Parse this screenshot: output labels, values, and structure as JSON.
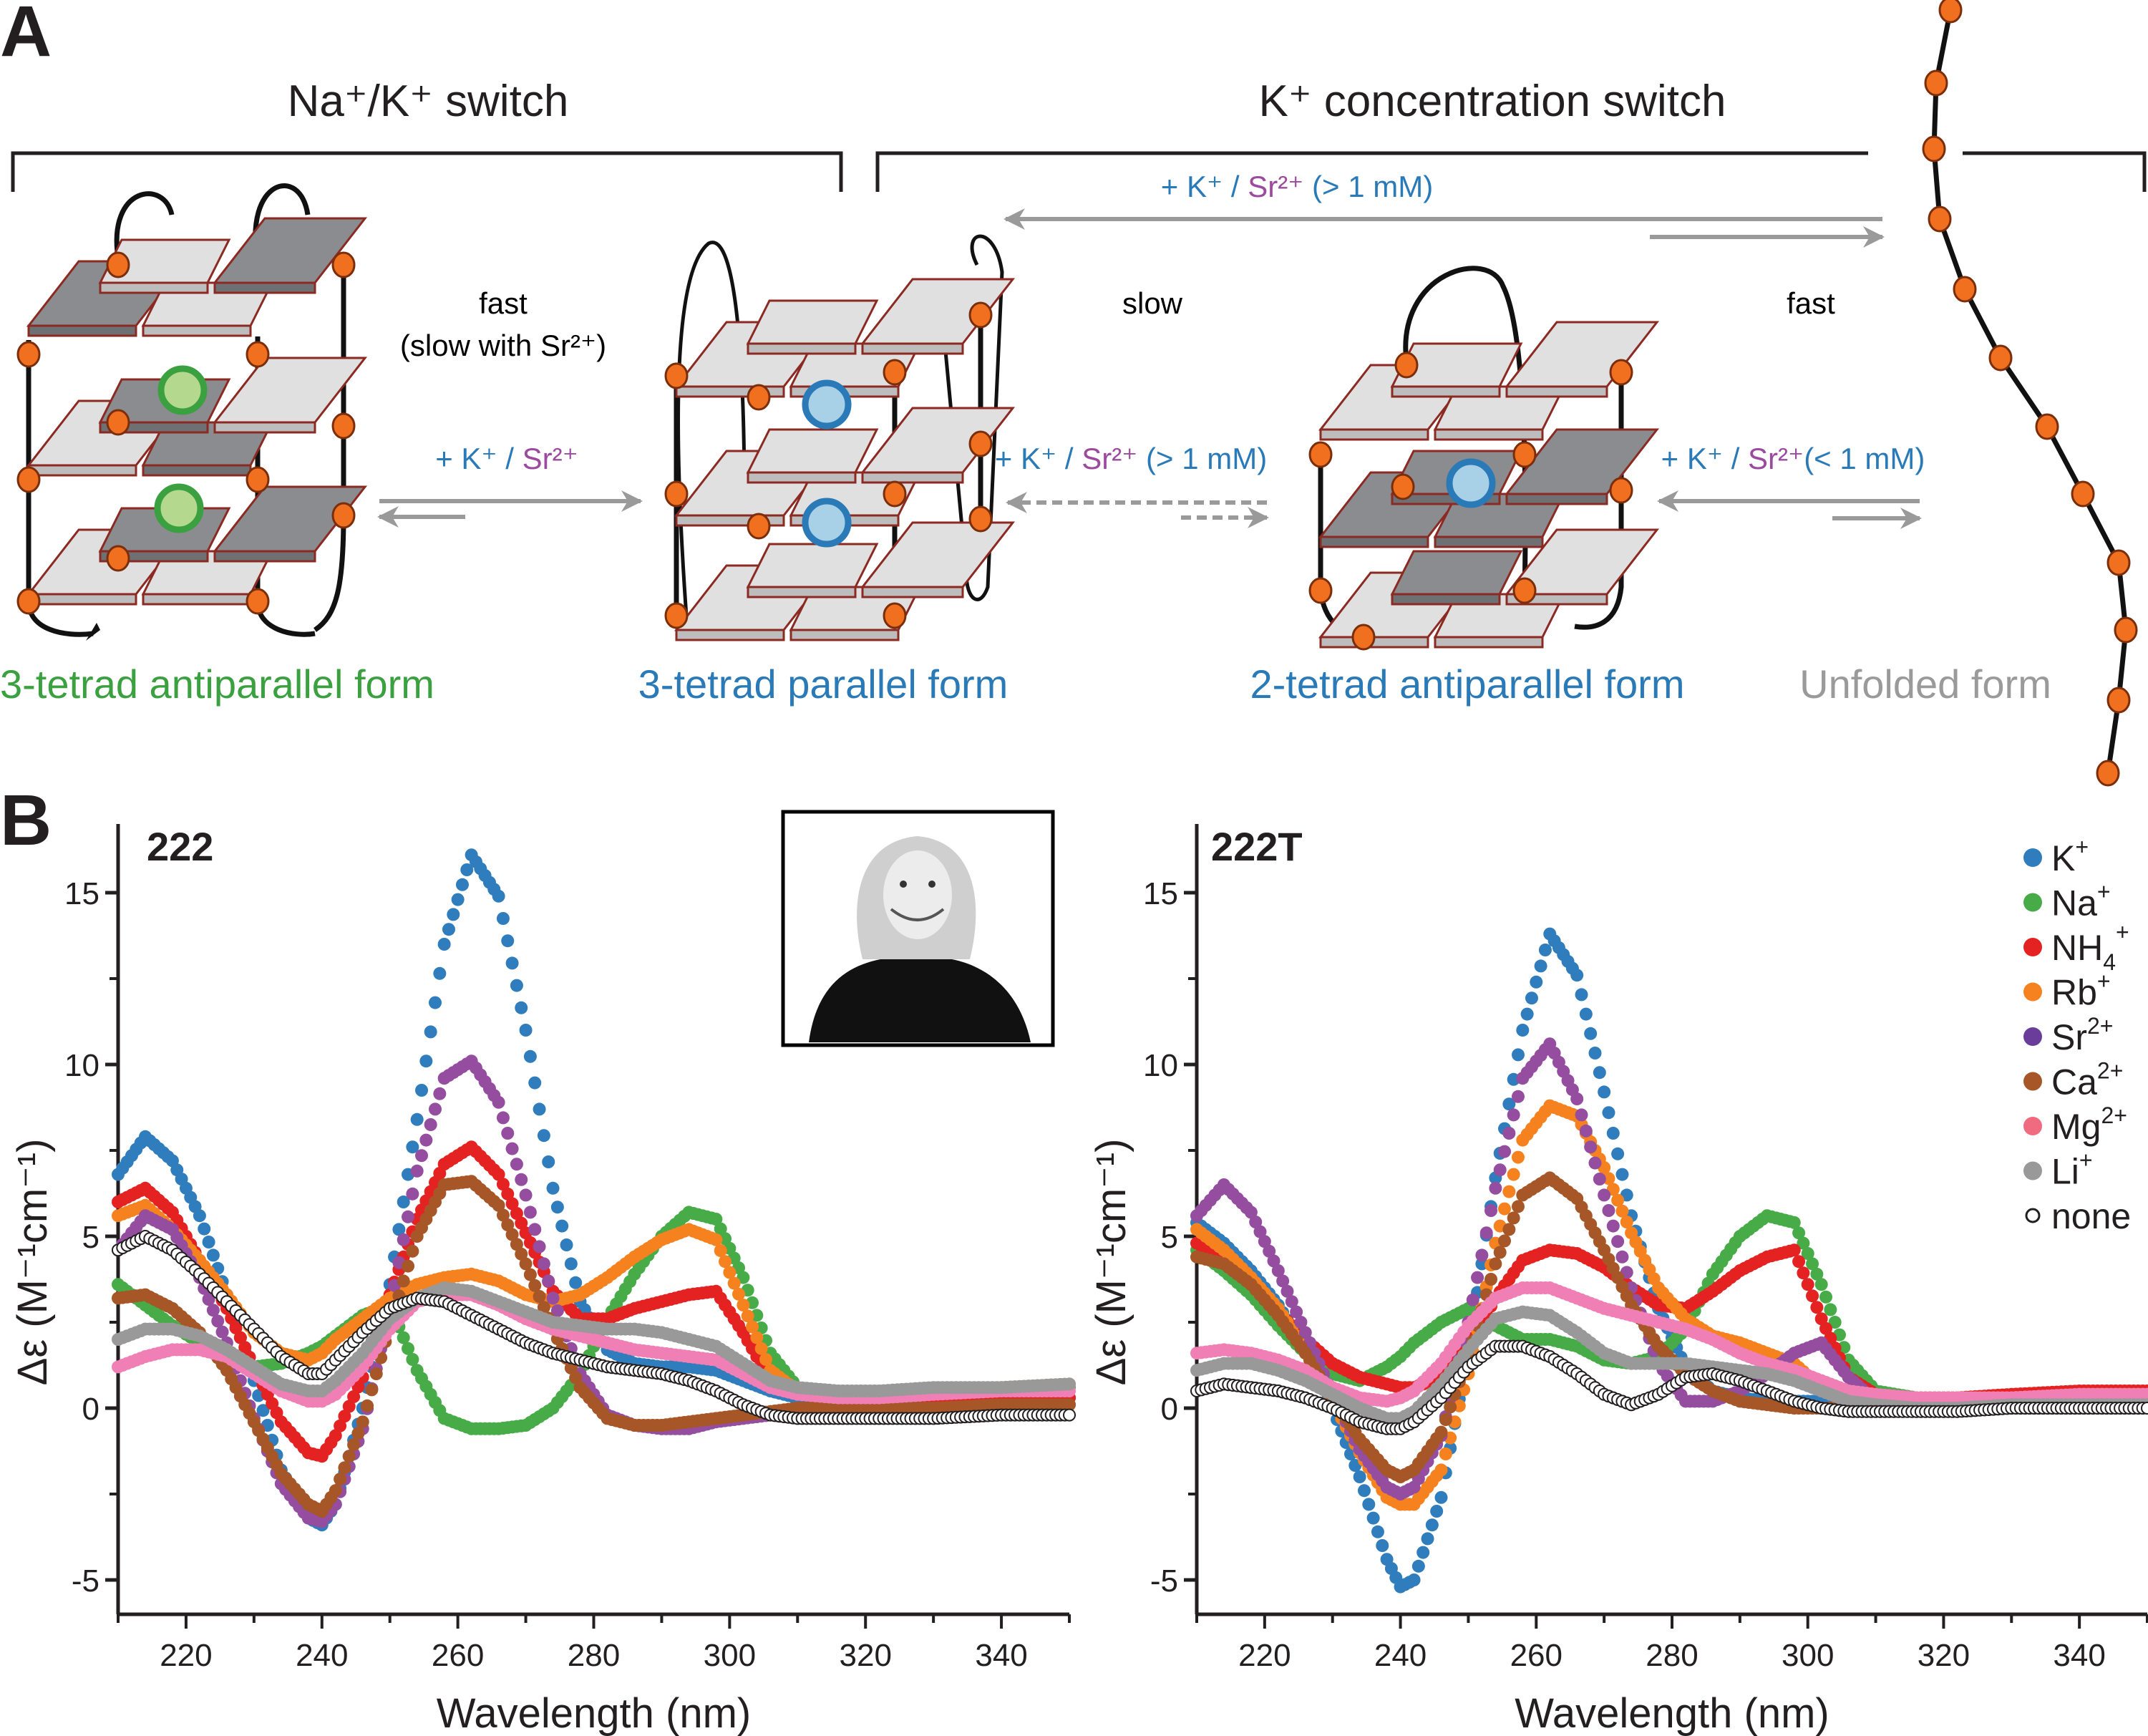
{
  "panel_a": {
    "label": "A",
    "switch_titles": [
      "Na⁺/K⁺ switch",
      "K⁺ concentration  switch"
    ],
    "rate_labels": {
      "nak": "fast",
      "nak_sub": "(slow with Sr²⁺)",
      "slow": "slow",
      "fast": "fast"
    },
    "conditions": {
      "top": {
        "k": "+ K⁺ / ",
        "sr": "Sr²⁺",
        "tail": " (> 1 mM)"
      },
      "nak": {
        "k": "+ K⁺ / ",
        "sr": "Sr²⁺",
        "tail": ""
      },
      "mid": {
        "k": "+ K⁺ / ",
        "sr": "Sr²⁺",
        "tail": " (> 1 mM)"
      },
      "right": {
        "k": "+ K⁺ / ",
        "sr": "Sr²⁺",
        "tail": "(< 1 mM)"
      }
    },
    "forms": [
      {
        "label": "3-tetrad antiparallel form",
        "color": "#3aa040"
      },
      {
        "label": "3-tetrad parallel form",
        "color": "#2a7ab8"
      },
      {
        "label": "2-tetrad antiparallel form",
        "color": "#2a7ab8"
      },
      {
        "label": "Unfolded form",
        "color": "#9a9a9a"
      }
    ],
    "colors": {
      "k_text": "#2a7ab8",
      "sr_text": "#9b4a9e",
      "arrow": "#9a9a9a",
      "nucleotide": "#f07020",
      "tetrad_light": "#e0e0e0",
      "tetrad_dark": "#8a8c8f",
      "tetrad_edge": "#8b2a22",
      "ion_na_fill": "#b5d88f",
      "ion_na_ring": "#3aa040",
      "ion_k_fill": "#a8d0e6",
      "ion_k_ring": "#2a7ab8"
    }
  },
  "panel_b": {
    "label": "B"
  },
  "chart_data": [
    {
      "type": "scatter",
      "title": "222",
      "xlabel": "Wavelength (nm)",
      "ylabel": "Δε (M⁻¹cm⁻¹)",
      "xlim": [
        210,
        350
      ],
      "ylim": [
        -6.0,
        17.0
      ],
      "xticks": [
        220,
        240,
        260,
        280,
        300,
        320,
        340
      ],
      "yticks": [
        -5,
        0,
        5,
        10,
        15
      ],
      "grid": false,
      "legend": "none",
      "inset": "portrait photo (grayscale)",
      "x": [
        210,
        214,
        218,
        222,
        226,
        230,
        234,
        238,
        240,
        242,
        246,
        250,
        254,
        258,
        262,
        266,
        270,
        274,
        278,
        282,
        286,
        290,
        294,
        298,
        302,
        306,
        310,
        316,
        322,
        330,
        340,
        350
      ],
      "series": [
        {
          "name": "K⁺",
          "color": "#2f7dbd",
          "values": [
            6.8,
            7.9,
            7.2,
            5.6,
            3.3,
            0.8,
            -1.8,
            -3.2,
            -3.4,
            -2.8,
            0.0,
            3.6,
            8.4,
            13.5,
            16.1,
            14.9,
            11.0,
            6.4,
            3.1,
            1.7,
            1.3,
            1.2,
            1.2,
            1.1,
            0.8,
            0.5,
            0.3,
            0.2,
            0.3,
            0.3,
            0.3,
            0.3
          ]
        },
        {
          "name": "Na⁺",
          "color": "#47ab48",
          "values": [
            3.6,
            3.0,
            2.4,
            1.9,
            1.5,
            1.2,
            1.3,
            1.6,
            1.8,
            2.1,
            2.7,
            3.0,
            1.1,
            -0.3,
            -0.6,
            -0.6,
            -0.5,
            0.0,
            1.0,
            2.6,
            3.9,
            5.0,
            5.7,
            5.5,
            3.8,
            1.6,
            0.6,
            0.4,
            0.4,
            0.4,
            0.5,
            0.6
          ]
        },
        {
          "name": "NH₄⁺",
          "color": "#e52222",
          "values": [
            6.0,
            6.4,
            5.7,
            4.3,
            2.9,
            1.2,
            -0.4,
            -1.3,
            -1.4,
            -0.8,
            0.9,
            3.3,
            5.5,
            7.1,
            7.6,
            6.8,
            5.1,
            3.4,
            2.6,
            2.6,
            2.9,
            3.1,
            3.3,
            3.4,
            2.2,
            0.8,
            0.4,
            0.3,
            0.3,
            0.3,
            0.3,
            0.3
          ]
        },
        {
          "name": "Rb⁺",
          "color": "#f5821f",
          "values": [
            5.6,
            5.9,
            5.2,
            4.3,
            3.3,
            2.2,
            1.6,
            1.4,
            1.6,
            2.0,
            2.6,
            3.2,
            3.6,
            3.8,
            3.9,
            3.7,
            3.3,
            3.1,
            3.3,
            3.8,
            4.4,
            4.9,
            5.2,
            4.9,
            3.0,
            1.1,
            0.5,
            0.4,
            0.4,
            0.5,
            0.6,
            0.7
          ]
        },
        {
          "name": "Sr²⁺",
          "color": "#954d9f",
          "values": [
            4.6,
            5.6,
            5.2,
            3.8,
            1.9,
            -0.3,
            -2.2,
            -3.2,
            -3.3,
            -2.8,
            -0.6,
            2.9,
            6.9,
            9.6,
            10.1,
            8.9,
            6.2,
            3.2,
            1.0,
            -0.2,
            -0.5,
            -0.6,
            -0.6,
            -0.4,
            -0.3,
            -0.2,
            -0.1,
            0.0,
            0.0,
            0.0,
            0.0,
            0.1
          ]
        },
        {
          "name": "Ca²⁺",
          "color": "#a65627",
          "values": [
            3.2,
            3.3,
            2.9,
            2.2,
            1.1,
            -0.4,
            -1.9,
            -2.8,
            -3.0,
            -2.4,
            -0.4,
            2.4,
            5.0,
            6.5,
            6.6,
            5.9,
            4.2,
            2.3,
            0.6,
            -0.3,
            -0.5,
            -0.5,
            -0.4,
            -0.3,
            -0.2,
            -0.1,
            0.0,
            0.0,
            0.0,
            0.0,
            0.1,
            0.1
          ]
        },
        {
          "name": "Mg²⁺",
          "color": "#f07fb6",
          "values": [
            1.2,
            1.5,
            1.7,
            1.7,
            1.5,
            1.0,
            0.5,
            0.2,
            0.2,
            0.4,
            1.2,
            2.3,
            3.1,
            3.3,
            3.3,
            3.0,
            2.6,
            2.3,
            2.1,
            1.9,
            1.7,
            1.6,
            1.5,
            1.4,
            1.0,
            0.6,
            0.4,
            0.3,
            0.3,
            0.4,
            0.5,
            0.5
          ]
        },
        {
          "name": "Li⁺",
          "color": "#999999",
          "values": [
            2.0,
            2.3,
            2.3,
            2.1,
            1.7,
            1.2,
            0.7,
            0.5,
            0.5,
            0.8,
            1.6,
            2.6,
            3.2,
            3.5,
            3.4,
            3.1,
            2.8,
            2.5,
            2.4,
            2.3,
            2.3,
            2.2,
            2.0,
            1.8,
            1.3,
            0.8,
            0.6,
            0.5,
            0.5,
            0.6,
            0.6,
            0.7
          ]
        },
        {
          "name": "none",
          "color": "#231f20",
          "hollow": true,
          "values": [
            4.6,
            5.0,
            4.6,
            3.9,
            3.1,
            2.3,
            1.5,
            1.0,
            1.0,
            1.4,
            2.2,
            2.9,
            3.2,
            3.1,
            2.7,
            2.3,
            1.9,
            1.6,
            1.4,
            1.2,
            1.1,
            1.0,
            0.8,
            0.5,
            0.1,
            -0.2,
            -0.3,
            -0.3,
            -0.3,
            -0.3,
            -0.2,
            -0.2
          ]
        }
      ]
    },
    {
      "type": "scatter",
      "title": "222T",
      "xlabel": "Wavelength (nm)",
      "ylabel": "Δε (M⁻¹cm⁻¹)",
      "xlim": [
        210,
        350
      ],
      "ylim": [
        -6.0,
        17.0
      ],
      "xticks": [
        220,
        240,
        260,
        280,
        300,
        320,
        340
      ],
      "yticks": [
        -5,
        0,
        5,
        10,
        15
      ],
      "grid": false,
      "legend": "right",
      "legend_entries": [
        {
          "label": "K",
          "sup": "+",
          "sub": "",
          "color": "#2f7dbd"
        },
        {
          "label": "Na",
          "sup": "+",
          "sub": "",
          "color": "#47ab48"
        },
        {
          "label": "NH",
          "sup": "+",
          "sub": "4",
          "color": "#e52222"
        },
        {
          "label": "Rb",
          "sup": "+",
          "sub": "",
          "color": "#f5821f"
        },
        {
          "label": "Sr",
          "sup": "2+",
          "sub": "",
          "color": "#6a3d9a"
        },
        {
          "label": "Ca",
          "sup": "2+",
          "sub": "",
          "color": "#a65627"
        },
        {
          "label": "Mg",
          "sup": "2+",
          "sub": "",
          "color": "#f06a80"
        },
        {
          "label": "Li",
          "sup": "+",
          "sub": "",
          "color": "#999999"
        },
        {
          "label": "none",
          "sup": "",
          "sub": "",
          "color": "#231f20",
          "hollow": true
        }
      ],
      "x": [
        210,
        214,
        218,
        222,
        226,
        230,
        234,
        238,
        240,
        242,
        246,
        250,
        254,
        258,
        262,
        266,
        270,
        274,
        278,
        282,
        286,
        290,
        294,
        298,
        302,
        306,
        310,
        316,
        322,
        330,
        340,
        350
      ],
      "series": [
        {
          "name": "K⁺",
          "color": "#2f7dbd",
          "values": [
            5.4,
            4.8,
            4.0,
            3.0,
            1.7,
            0.0,
            -2.0,
            -4.4,
            -5.2,
            -5.0,
            -2.6,
            1.7,
            6.7,
            11.0,
            13.8,
            12.6,
            9.2,
            5.6,
            2.9,
            1.2,
            0.5,
            0.3,
            0.2,
            0.2,
            0.2,
            0.1,
            0.1,
            0.1,
            0.1,
            0.1,
            0.2,
            0.2
          ]
        },
        {
          "name": "Na⁺",
          "color": "#47ab48",
          "values": [
            4.6,
            4.0,
            3.3,
            2.4,
            1.6,
            1.0,
            0.8,
            1.2,
            1.5,
            1.9,
            2.5,
            2.9,
            2.4,
            2.0,
            2.0,
            1.8,
            1.4,
            1.3,
            1.5,
            2.3,
            3.9,
            5.0,
            5.6,
            5.4,
            3.6,
            1.4,
            0.5,
            0.3,
            0.3,
            0.3,
            0.4,
            0.4
          ]
        },
        {
          "name": "NH₄⁺",
          "color": "#e52222",
          "values": [
            4.8,
            4.3,
            3.6,
            2.8,
            2.0,
            1.3,
            0.9,
            0.7,
            0.6,
            0.6,
            0.9,
            1.8,
            3.2,
            4.3,
            4.6,
            4.5,
            4.1,
            3.5,
            3.0,
            2.9,
            3.4,
            4.0,
            4.4,
            4.6,
            2.6,
            0.9,
            0.4,
            0.3,
            0.3,
            0.4,
            0.5,
            0.5
          ]
        },
        {
          "name": "Rb⁺",
          "color": "#f5821f",
          "values": [
            5.2,
            4.6,
            3.8,
            2.9,
            1.7,
            0.2,
            -1.3,
            -2.6,
            -2.8,
            -2.8,
            -1.8,
            1.0,
            4.8,
            7.8,
            8.8,
            8.5,
            7.0,
            5.1,
            3.5,
            2.6,
            2.1,
            1.9,
            1.6,
            1.3,
            0.6,
            0.4,
            0.3,
            0.3,
            0.3,
            0.3,
            0.4,
            0.4
          ]
        },
        {
          "name": "Sr²⁺",
          "color": "#954d9f",
          "values": [
            5.6,
            6.5,
            5.7,
            4.0,
            2.2,
            0.4,
            -1.2,
            -2.3,
            -2.5,
            -2.3,
            -0.8,
            2.5,
            6.4,
            9.6,
            10.6,
            9.0,
            6.2,
            3.5,
            1.3,
            0.2,
            0.2,
            0.5,
            1.0,
            1.6,
            1.9,
            0.9,
            0.2,
            0.0,
            0.0,
            0.0,
            0.0,
            0.0
          ]
        },
        {
          "name": "Ca²⁺",
          "color": "#a65627",
          "values": [
            4.4,
            4.2,
            3.6,
            2.7,
            1.6,
            0.3,
            -0.9,
            -1.8,
            -2.0,
            -1.8,
            -0.7,
            1.5,
            4.2,
            6.2,
            6.7,
            6.1,
            4.6,
            3.0,
            1.8,
            1.0,
            0.5,
            0.2,
            0.1,
            0.0,
            0.0,
            0.0,
            0.1,
            0.1,
            0.2,
            0.2,
            0.3,
            0.3
          ]
        },
        {
          "name": "Mg²⁺",
          "color": "#f07fb6",
          "values": [
            1.6,
            1.7,
            1.6,
            1.4,
            1.1,
            0.6,
            0.3,
            0.2,
            0.3,
            0.5,
            1.3,
            2.4,
            3.2,
            3.5,
            3.5,
            3.2,
            2.9,
            2.7,
            2.5,
            2.3,
            2.0,
            1.6,
            1.3,
            1.1,
            0.8,
            0.5,
            0.4,
            0.3,
            0.3,
            0.3,
            0.4,
            0.4
          ]
        },
        {
          "name": "Li⁺",
          "color": "#999999",
          "values": [
            1.1,
            1.3,
            1.3,
            1.1,
            0.8,
            0.4,
            0.0,
            -0.3,
            -0.3,
            -0.1,
            0.7,
            1.7,
            2.6,
            2.8,
            2.7,
            2.2,
            1.6,
            1.3,
            1.3,
            1.3,
            1.2,
            1.1,
            1.0,
            0.8,
            0.5,
            0.2,
            0.1,
            0.0,
            0.0,
            0.1,
            0.1,
            0.1
          ]
        },
        {
          "name": "none",
          "color": "#231f20",
          "hollow": true,
          "values": [
            0.5,
            0.7,
            0.6,
            0.5,
            0.3,
            0.0,
            -0.4,
            -0.6,
            -0.6,
            -0.4,
            0.3,
            1.2,
            1.8,
            1.8,
            1.5,
            1.0,
            0.4,
            0.1,
            0.4,
            0.9,
            1.0,
            0.8,
            0.5,
            0.2,
            0.0,
            -0.1,
            -0.1,
            -0.1,
            -0.1,
            0.0,
            0.0,
            0.0
          ]
        }
      ]
    }
  ]
}
